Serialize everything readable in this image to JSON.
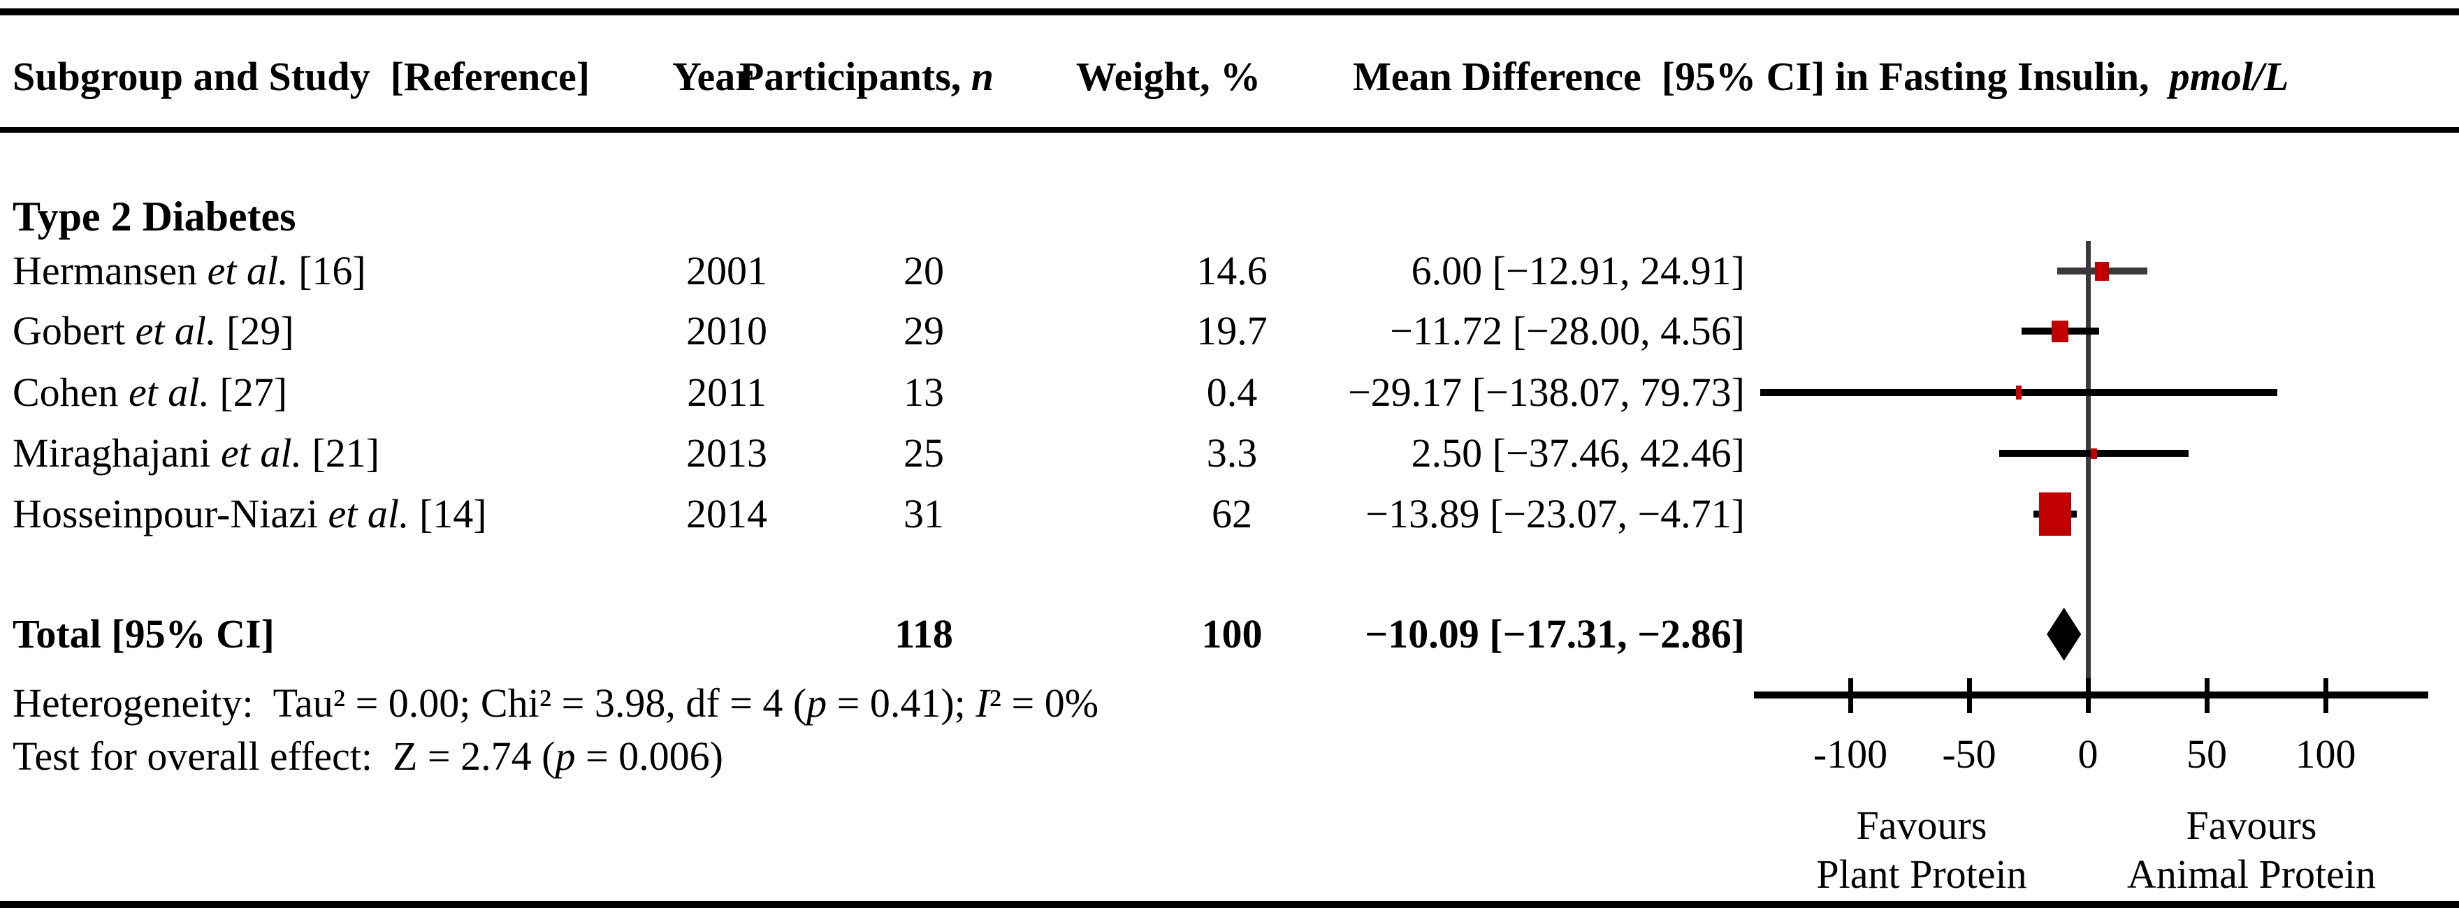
{
  "header": {
    "subgroup_study": "Subgroup and Study  [Reference]",
    "year": "Year",
    "participants_parts": [
      {
        "text": "Participants, "
      },
      {
        "text": "n",
        "italic": true
      }
    ],
    "weight": "Weight, %",
    "md_parts": [
      {
        "text": "Mean Difference  [95% CI] in Fasting Insulin,  "
      },
      {
        "text": "pmol/L",
        "italic": true
      }
    ]
  },
  "subgroup_heading": "Type 2 Diabetes",
  "stats": {
    "heterogeneity_parts": [
      {
        "text": "Heterogeneity:  Tau² = 0.00; Chi² = 3.98, df = 4 ("
      },
      {
        "text": "p",
        "italic": true
      },
      {
        "text": " = 0.41); "
      },
      {
        "text": "I",
        "italic": true
      },
      {
        "text": "² = 0%"
      }
    ],
    "overall_test_parts": [
      {
        "text": "Test for overall effect:  Z = 2.74 ("
      },
      {
        "text": "p",
        "italic": true
      },
      {
        "text": " = 0.006)"
      }
    ]
  },
  "footer": {
    "favours_left_line1": "Favours",
    "favours_left_line2": "Plant Protein",
    "favours_right_line1": "Favours",
    "favours_right_line2": "Animal Protein"
  },
  "colors": {
    "marker_red": "#c00000",
    "guide_gray": "#3a3a3a",
    "line_black": "#000000"
  },
  "chart_data": {
    "type": "forest",
    "title": "Mean Difference [95% CI] in Fasting Insulin, pmol/L",
    "x_axis": {
      "tick_values": [
        -100,
        -50,
        0,
        50,
        100
      ],
      "tick_labels": [
        "-100",
        "-50",
        "0",
        "50",
        "100"
      ],
      "range": [
        -140,
        143
      ],
      "zero_reference_line": true
    },
    "studies": [
      {
        "author": "Hermansen",
        "etal": "et al.",
        "ref": "[16]",
        "year": "2001",
        "participants": "20",
        "weight": "14.6",
        "md_text": "6.00 [−12.91, 24.91]",
        "estimate": 6.0,
        "ci_low": -12.91,
        "ci_high": 24.91
      },
      {
        "author": "Gobert",
        "etal": "et al.",
        "ref": "[29]",
        "year": "2010",
        "participants": "29",
        "weight": "19.7",
        "md_text": "−11.72 [−28.00, 4.56]",
        "estimate": -11.72,
        "ci_low": -28.0,
        "ci_high": 4.56
      },
      {
        "author": "Cohen",
        "etal": "et al.",
        "ref": "[27]",
        "year": "2011",
        "participants": "13",
        "weight": "0.4",
        "md_text": "−29.17 [−138.07, 79.73]",
        "estimate": -29.17,
        "ci_low": -138.07,
        "ci_high": 79.73
      },
      {
        "author": "Miraghajani",
        "etal": "et al.",
        "ref": "[21]",
        "year": "2013",
        "participants": "25",
        "weight": "3.3",
        "md_text": "2.50 [−37.46, 42.46]",
        "estimate": 2.5,
        "ci_low": -37.46,
        "ci_high": 42.46
      },
      {
        "author": "Hosseinpour-Niazi",
        "etal": "et al.",
        "ref": "[14]",
        "year": "2014",
        "participants": "31",
        "weight": "62",
        "md_text": "−13.89 [−23.07, −4.71]",
        "estimate": -13.89,
        "ci_low": -23.07,
        "ci_high": -4.71
      }
    ],
    "overall": {
      "label": "Total [95% CI]",
      "participants": "118",
      "weight": "100",
      "md_text": "−10.09 [−17.31, −2.86]",
      "estimate": -10.09,
      "ci_low": -17.31,
      "ci_high": -2.86
    }
  }
}
